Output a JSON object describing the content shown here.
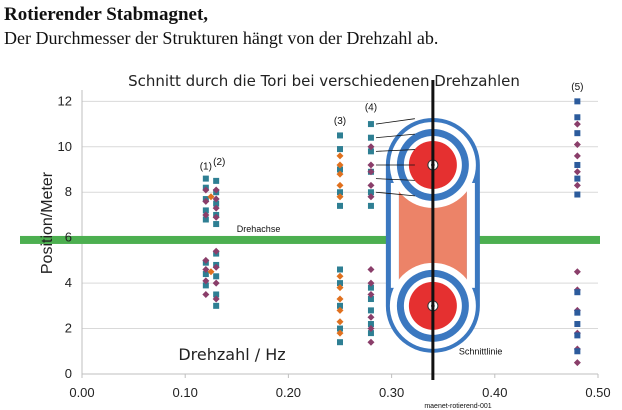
{
  "heading": {
    "title": "Rotierender Stabmagnet,",
    "subtitle": "Der Durchmesser der Strukturen hängt von der Drehzahl ab."
  },
  "footer_id": "maenet-rotierend-001",
  "colors": {
    "teal_square": "#2e7f93",
    "orange_diamond": "#e0701e",
    "purple_diamond": "#8a3e6a",
    "blue_square": "#2c5b9c",
    "axis_band": "#4caf50",
    "torus_blue": "#3b78c0",
    "torus_red": "#e53030",
    "torus_salmon": "#ec8368"
  },
  "chart_data": {
    "type": "scatter",
    "title": "Schnitt durch die Tori bei verschiedenen Drehzahlen",
    "xlabel": "Drehzahl / Hz",
    "ylabel": "Position/Meter",
    "xlim": [
      0.0,
      0.5
    ],
    "ylim": [
      0,
      12.5
    ],
    "xticks": [
      "0.00",
      "0.10",
      "0.20",
      "0.30",
      "0.40",
      "0.50"
    ],
    "yticks": [
      "0",
      "2",
      "4",
      "6",
      "8",
      "10",
      "12"
    ],
    "grid": "horizontal",
    "annotations": {
      "axis_line": {
        "label": "Drehachse",
        "y": 5.9
      },
      "cut_line": {
        "label": "Schnittlinie",
        "x": 0.34
      },
      "group_labels": [
        {
          "label": "(1)",
          "x": 0.12,
          "y": 9.0
        },
        {
          "label": "(2)",
          "x": 0.133,
          "y": 9.2
        },
        {
          "label": "(3)",
          "x": 0.25,
          "y": 11.0
        },
        {
          "label": "(4)",
          "x": 0.28,
          "y": 11.6
        },
        {
          "label": "(5)",
          "x": 0.48,
          "y": 12.5
        }
      ]
    },
    "series": [
      {
        "marker": "square",
        "color": "#2e7f93",
        "points": [
          [
            0.12,
            8.6
          ],
          [
            0.12,
            8.2
          ],
          [
            0.12,
            7.7
          ],
          [
            0.12,
            7.2
          ],
          [
            0.12,
            6.8
          ],
          [
            0.12,
            4.9
          ],
          [
            0.12,
            4.4
          ],
          [
            0.12,
            3.9
          ],
          [
            0.13,
            8.5
          ],
          [
            0.13,
            8.0
          ],
          [
            0.13,
            7.5
          ],
          [
            0.13,
            7.0
          ],
          [
            0.13,
            6.6
          ],
          [
            0.13,
            5.3
          ],
          [
            0.13,
            4.8
          ],
          [
            0.13,
            4.3
          ],
          [
            0.13,
            3.5
          ],
          [
            0.13,
            3.0
          ],
          [
            0.25,
            10.5
          ],
          [
            0.25,
            9.9
          ],
          [
            0.25,
            9.0
          ],
          [
            0.25,
            8.0
          ],
          [
            0.25,
            7.4
          ],
          [
            0.25,
            4.6
          ],
          [
            0.25,
            4.0
          ],
          [
            0.25,
            3.0
          ],
          [
            0.25,
            2.0
          ],
          [
            0.25,
            1.4
          ],
          [
            0.28,
            11.0
          ],
          [
            0.28,
            10.4
          ],
          [
            0.28,
            9.8
          ],
          [
            0.28,
            8.9
          ],
          [
            0.28,
            8.0
          ],
          [
            0.28,
            7.4
          ],
          [
            0.28,
            3.8
          ],
          [
            0.28,
            3.3
          ],
          [
            0.28,
            2.8
          ],
          [
            0.28,
            2.2
          ],
          [
            0.28,
            1.8
          ]
        ]
      },
      {
        "marker": "diamond",
        "color": "#e0701e",
        "points": [
          [
            0.25,
            9.6
          ],
          [
            0.25,
            9.2
          ],
          [
            0.25,
            8.8
          ],
          [
            0.25,
            8.3
          ],
          [
            0.25,
            7.8
          ],
          [
            0.25,
            4.3
          ],
          [
            0.25,
            3.8
          ],
          [
            0.25,
            3.3
          ],
          [
            0.25,
            2.8
          ],
          [
            0.25,
            2.3
          ],
          [
            0.25,
            1.8
          ],
          [
            0.125,
            7.8
          ],
          [
            0.125,
            4.5
          ]
        ]
      },
      {
        "marker": "diamond",
        "color": "#8a3e6a",
        "points": [
          [
            0.12,
            8.1
          ],
          [
            0.12,
            7.6
          ],
          [
            0.12,
            7.0
          ],
          [
            0.12,
            5.0
          ],
          [
            0.12,
            4.6
          ],
          [
            0.12,
            4.1
          ],
          [
            0.12,
            3.5
          ],
          [
            0.13,
            8.1
          ],
          [
            0.13,
            7.7
          ],
          [
            0.13,
            7.3
          ],
          [
            0.13,
            6.9
          ],
          [
            0.13,
            5.4
          ],
          [
            0.13,
            4.7
          ],
          [
            0.13,
            4.0
          ],
          [
            0.13,
            3.3
          ],
          [
            0.28,
            10.0
          ],
          [
            0.28,
            9.2
          ],
          [
            0.28,
            8.9
          ],
          [
            0.28,
            8.3
          ],
          [
            0.28,
            7.8
          ],
          [
            0.28,
            4.6
          ],
          [
            0.28,
            4.0
          ],
          [
            0.28,
            3.5
          ],
          [
            0.28,
            2.5
          ],
          [
            0.28,
            2.0
          ],
          [
            0.28,
            1.4
          ],
          [
            0.48,
            11.0
          ],
          [
            0.48,
            10.1
          ],
          [
            0.48,
            9.6
          ],
          [
            0.48,
            8.9
          ],
          [
            0.48,
            8.3
          ],
          [
            0.48,
            4.5
          ],
          [
            0.48,
            3.7
          ],
          [
            0.48,
            2.8
          ],
          [
            0.48,
            1.8
          ],
          [
            0.48,
            1.1
          ],
          [
            0.48,
            0.5
          ]
        ]
      },
      {
        "marker": "square",
        "color": "#2c5b9c",
        "points": [
          [
            0.48,
            12.0
          ],
          [
            0.48,
            11.3
          ],
          [
            0.48,
            10.6
          ],
          [
            0.48,
            9.2
          ],
          [
            0.48,
            8.6
          ],
          [
            0.48,
            7.9
          ],
          [
            0.48,
            3.6
          ],
          [
            0.48,
            2.7
          ],
          [
            0.48,
            2.2
          ],
          [
            0.48,
            1.7
          ],
          [
            0.48,
            1.0
          ]
        ]
      }
    ]
  }
}
